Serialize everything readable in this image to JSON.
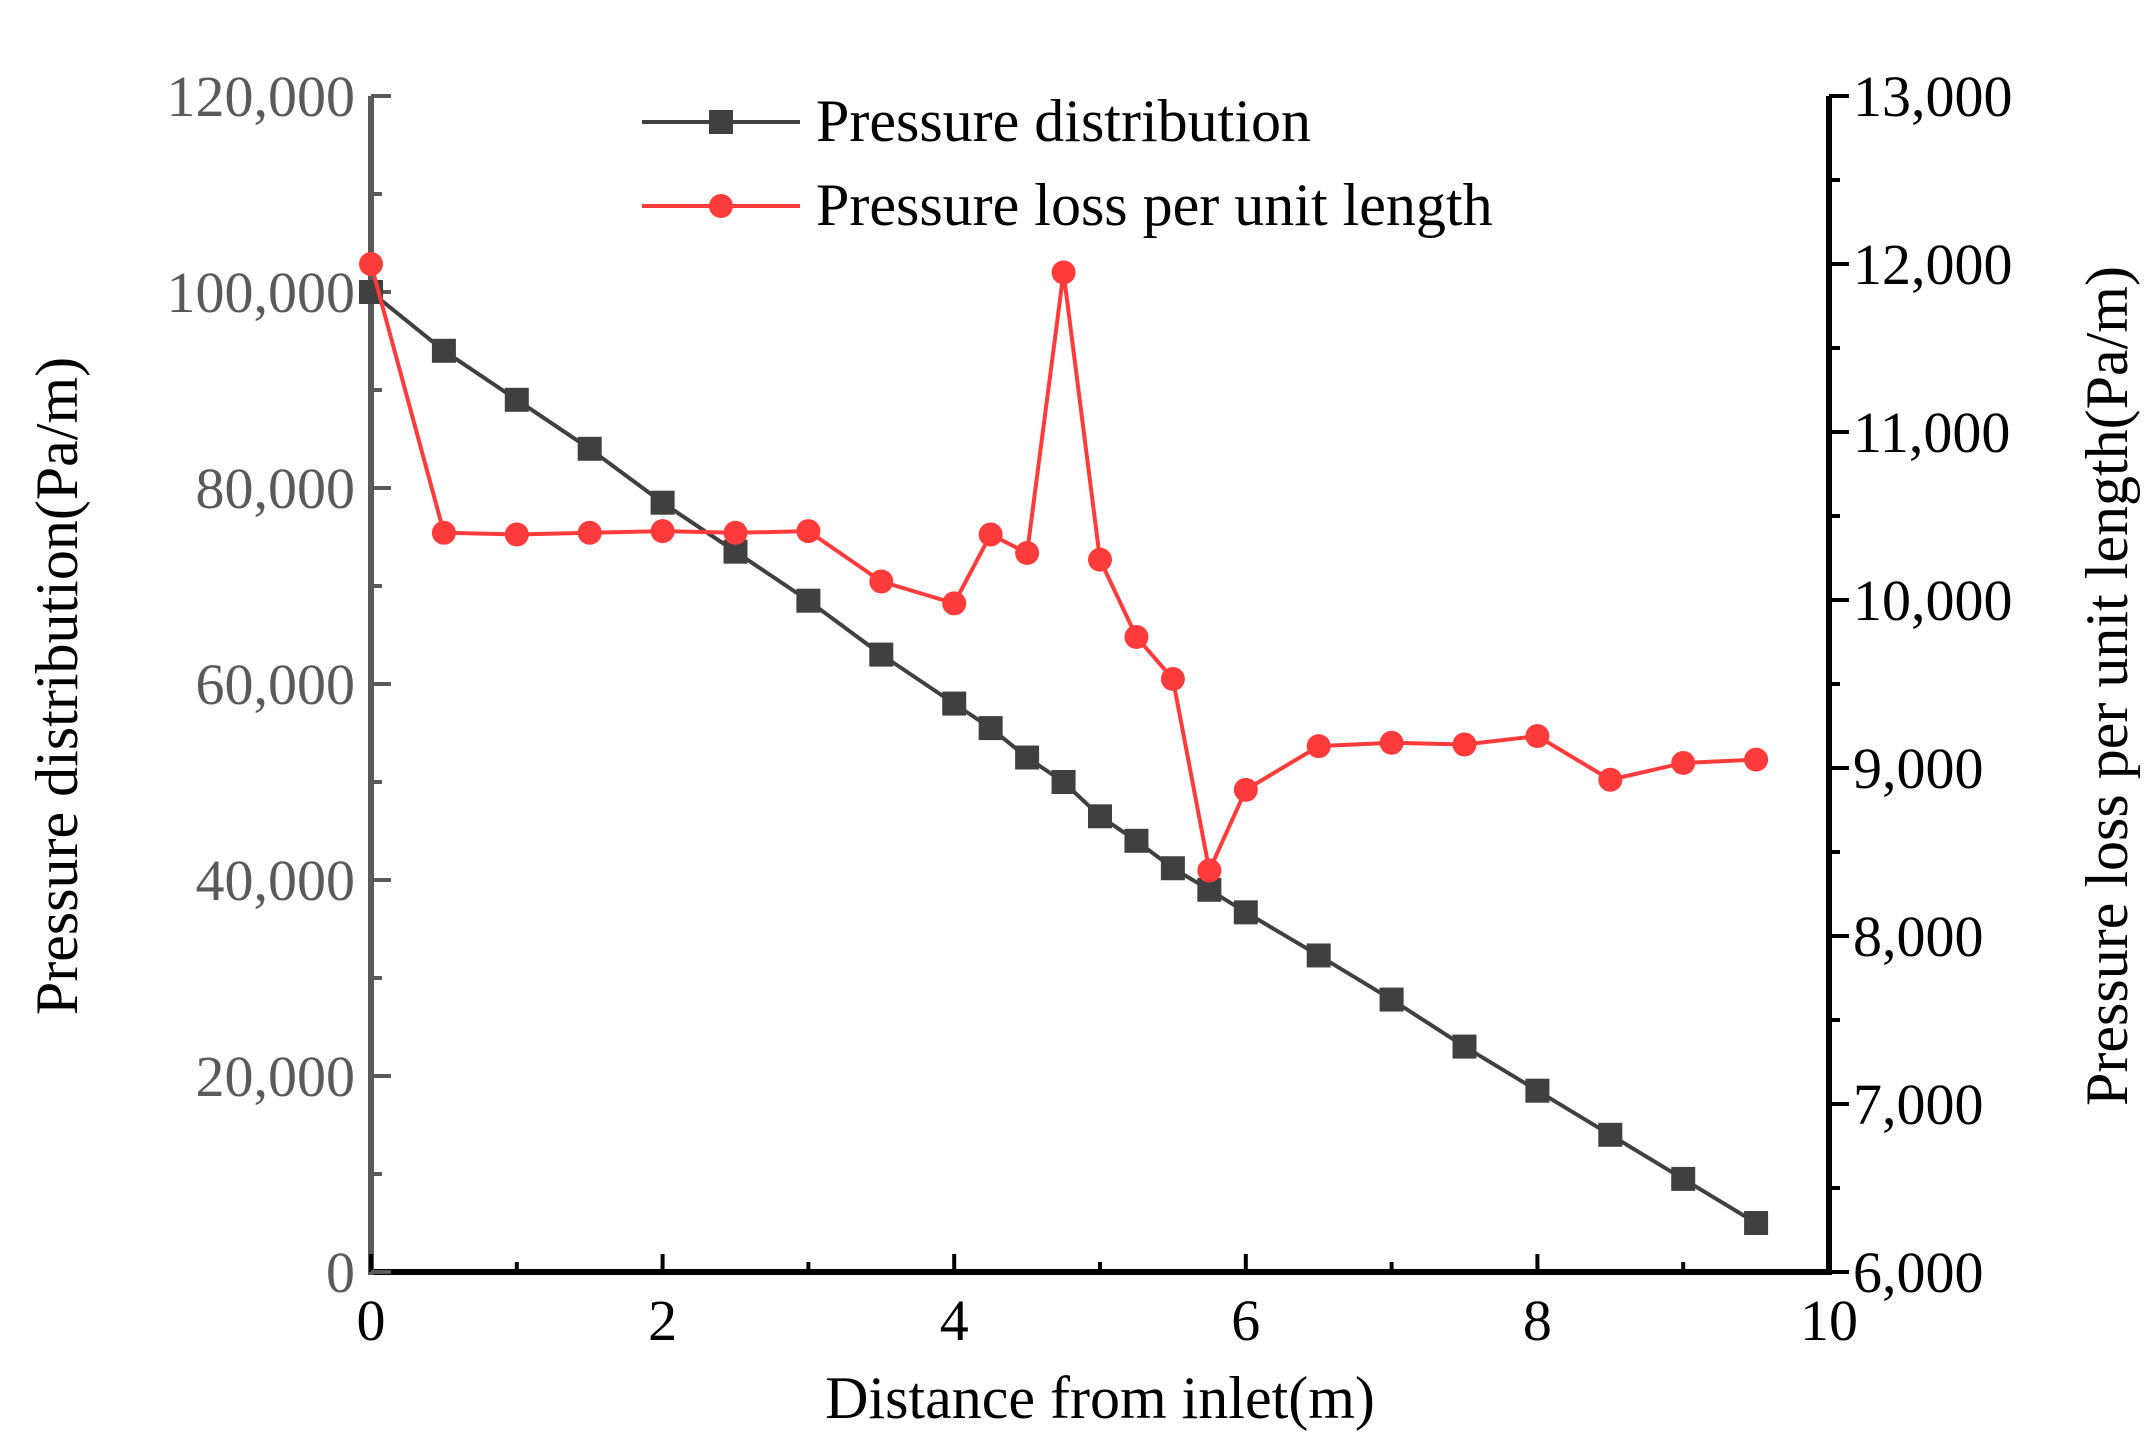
{
  "chart_data": {
    "type": "line",
    "title": "",
    "xlabel": "Distance from inlet(m)",
    "ylabel_left": "Pressure distribution(Pa/m)",
    "ylabel_right": "Pressure loss per unit length(Pa/m)",
    "xlim": [
      0,
      10
    ],
    "ylim_left": [
      0,
      120000
    ],
    "ylim_right": [
      6000,
      13000
    ],
    "x_ticks": [
      0,
      2,
      4,
      6,
      8,
      10
    ],
    "x_tick_labels": [
      "0",
      "2",
      "4",
      "6",
      "8",
      "10"
    ],
    "y_left_ticks": [
      0,
      20000,
      40000,
      60000,
      80000,
      100000,
      120000
    ],
    "y_left_tick_labels": [
      "0",
      "20,000",
      "40,000",
      "60,000",
      "80,000",
      "100,000",
      "120,000"
    ],
    "y_right_ticks": [
      6000,
      7000,
      8000,
      9000,
      10000,
      11000,
      12000,
      13000
    ],
    "y_right_tick_labels": [
      "6,000",
      "7,000",
      "8,000",
      "9,000",
      "10,000",
      "11,000",
      "12,000",
      "13,000"
    ],
    "grid": false,
    "legend_position": "top-center",
    "series": [
      {
        "name": "Pressure distribution",
        "axis": "left",
        "color": "#404040",
        "marker": "square",
        "x": [
          0,
          0.5,
          1,
          1.5,
          2,
          2.5,
          3,
          3.5,
          4,
          4.25,
          4.5,
          4.75,
          5,
          5.25,
          5.5,
          5.75,
          6,
          6.5,
          7,
          7.5,
          8,
          8.5,
          9,
          9.5
        ],
        "y": [
          100000,
          94000,
          89000,
          84000,
          78500,
          73500,
          68500,
          63000,
          58000,
          55500,
          52500,
          50000,
          46500,
          44000,
          41200,
          39000,
          36700,
          32300,
          27800,
          23000,
          18500,
          14000,
          9500,
          5000
        ]
      },
      {
        "name": "Pressure loss per unit length",
        "axis": "right",
        "color": "#ff3b3b",
        "marker": "circle",
        "x": [
          0,
          0.5,
          1,
          1.5,
          2,
          2.5,
          3,
          3.5,
          4,
          4.25,
          4.5,
          4.75,
          5,
          5.25,
          5.5,
          5.75,
          6,
          6.5,
          7,
          7.5,
          8,
          8.5,
          9,
          9.5
        ],
        "y": [
          12000,
          10400,
          10390,
          10400,
          10410,
          10400,
          10410,
          10110,
          9980,
          10390,
          10280,
          11950,
          10240,
          9780,
          9530,
          8390,
          8870,
          9130,
          9150,
          9140,
          9190,
          8930,
          9030,
          9050
        ]
      }
    ]
  }
}
